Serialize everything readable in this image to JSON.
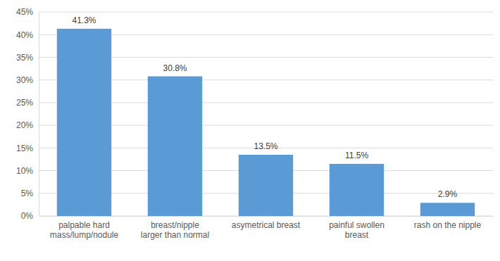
{
  "chart_data": {
    "type": "bar",
    "categories": [
      "palpable hard mass/lump/nodule",
      "breast/nipple larger than normal",
      "asymetrical breast",
      "painful swollen breast",
      "rash on the nipple"
    ],
    "values": [
      41.3,
      30.8,
      13.5,
      11.5,
      2.9
    ],
    "value_labels": [
      "41.3%",
      "30.8%",
      "13.5%",
      "11.5%",
      "2.9%"
    ],
    "color": "#5b9bd5",
    "ylim": [
      0,
      45
    ],
    "yticks": [
      {
        "value": 0,
        "label": "0%"
      },
      {
        "value": 5,
        "label": "5%"
      },
      {
        "value": 10,
        "label": "10%"
      },
      {
        "value": 15,
        "label": "15%"
      },
      {
        "value": 20,
        "label": "20%"
      },
      {
        "value": 25,
        "label": "25%"
      },
      {
        "value": 30,
        "label": "30%"
      },
      {
        "value": 35,
        "label": "35%"
      },
      {
        "value": 40,
        "label": "40%"
      },
      {
        "value": 45,
        "label": "45%"
      }
    ],
    "grid": true,
    "data_labels": true
  }
}
